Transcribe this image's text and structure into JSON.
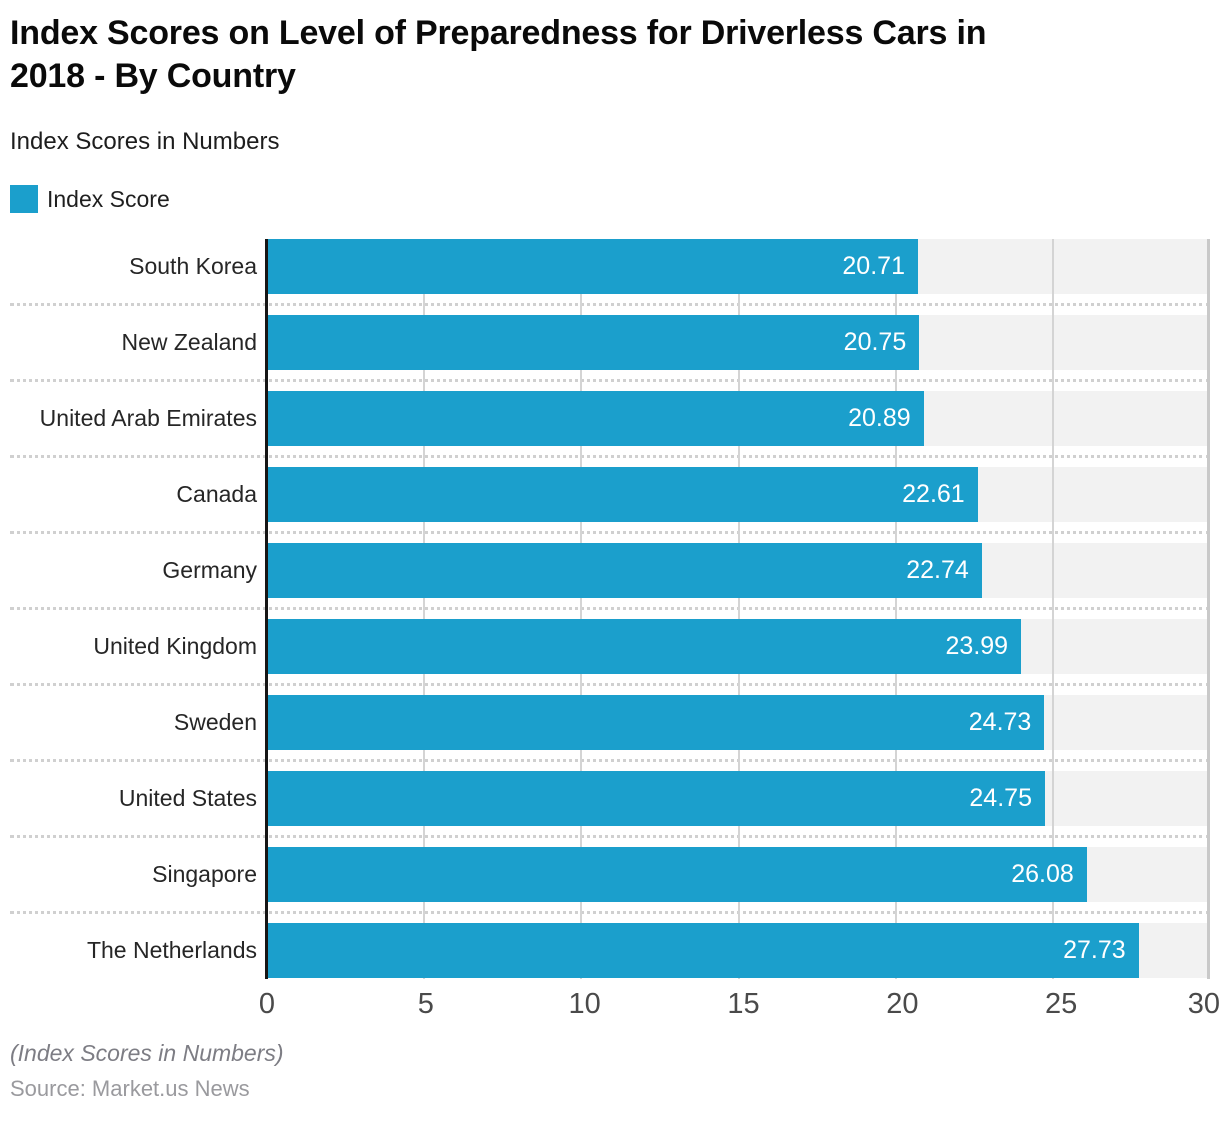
{
  "title": "Index Scores on Level of Preparedness for Driverless Cars in\n2018 - By Country",
  "subtitle": "Index Scores in Numbers",
  "legend": {
    "label": "Index Score",
    "swatch_color": "#1b9fcc"
  },
  "chart_data": {
    "type": "bar",
    "orientation": "horizontal",
    "title": "Index Scores on Level of Preparedness for Driverless Cars in 2018 - By Country",
    "subtitle": "Index Scores in Numbers",
    "series_name": "Index Score",
    "categories": [
      "South Korea",
      "New Zealand",
      "United Arab Emirates",
      "Canada",
      "Germany",
      "United Kingdom",
      "Sweden",
      "United States",
      "Singapore",
      "The Netherlands"
    ],
    "values": [
      20.71,
      20.75,
      20.89,
      22.61,
      22.74,
      23.99,
      24.73,
      24.75,
      26.08,
      27.73
    ],
    "value_labels": [
      "20.71",
      "20.75",
      "20.89",
      "22.61",
      "22.74",
      "23.99",
      "24.73",
      "24.75",
      "26.08",
      "27.73"
    ],
    "xlim": [
      0,
      30
    ],
    "x_ticks": [
      "0",
      "5",
      "10",
      "15",
      "20",
      "25",
      "30"
    ],
    "grid": true,
    "legend_position": "top-left",
    "bar_color": "#1b9fcc",
    "band_color": "#f2f2f2",
    "grid_color": "#d4d4d4",
    "axis_color": "#161616",
    "value_label_color": "#ffffff"
  },
  "footer": {
    "note": "(Index Scores in Numbers)",
    "source": "Source: Market.us News"
  }
}
